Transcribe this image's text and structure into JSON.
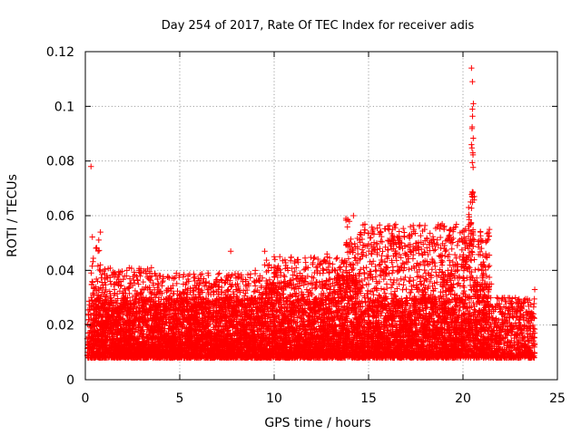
{
  "chart_data": {
    "type": "scatter",
    "title": "Day 254 of 2017, Rate Of TEC Index for receiver adis",
    "xlabel": "GPS time / hours",
    "ylabel": "ROTI / TECUs",
    "xlim": [
      0,
      25
    ],
    "ylim": [
      0,
      0.12
    ],
    "xticks": [
      0,
      5,
      10,
      15,
      20,
      25
    ],
    "yticks": [
      0,
      0.02,
      0.04,
      0.06,
      0.08,
      0.1,
      0.12
    ],
    "xtick_labels": [
      "0",
      "5",
      "10",
      "15",
      "20",
      "25"
    ],
    "ytick_labels": [
      "0",
      "0.02",
      "0.04",
      "0.06",
      "0.08",
      "0.1",
      "0.12"
    ],
    "grid": true,
    "marker": "plus",
    "color": "#ff0000",
    "series": [
      {
        "name": "ROTI",
        "x": [
          0.1,
          0.2,
          0.3,
          0.4,
          0.5,
          0.6,
          0.7,
          0.8,
          0.9,
          1.0,
          1.2,
          1.5,
          1.8,
          2.0,
          2.2,
          2.5,
          2.8,
          3.0,
          3.2,
          3.5,
          3.8,
          4.0,
          4.2,
          4.5,
          4.8,
          5.0,
          5.2,
          5.5,
          5.8,
          6.0,
          6.2,
          6.5,
          6.8,
          7.0,
          7.2,
          7.5,
          7.8,
          8.0,
          8.2,
          8.5,
          8.8,
          9.0,
          9.2,
          9.5,
          9.8,
          10.0,
          10.2,
          10.5,
          10.8,
          11.0,
          11.2,
          11.5,
          11.8,
          12.0,
          12.2,
          12.5,
          12.8,
          13.0,
          13.2,
          13.5,
          13.8,
          14.0,
          14.2,
          14.5,
          14.8,
          15.0,
          15.2,
          15.5,
          15.8,
          16.0,
          16.2,
          16.5,
          16.8,
          17.0,
          17.2,
          17.5,
          17.8,
          18.0,
          18.2,
          18.5,
          18.8,
          19.0,
          19.2,
          19.5,
          19.8,
          20.0,
          20.2,
          20.4,
          20.45,
          20.5,
          20.55,
          20.6,
          20.8,
          21.0,
          21.2,
          21.5,
          21.8,
          22.0,
          22.2,
          22.5,
          22.8,
          23.0,
          23.2,
          23.5,
          23.8,
          0.3,
          0.8,
          3.5,
          6.5,
          9.5,
          10.3,
          13.8,
          14.2,
          18.9,
          20.3,
          20.45,
          20.5,
          20.52,
          21.4,
          19.0,
          16.3,
          12.8,
          7.7,
          2.2
        ],
        "y": [
          0.015,
          0.022,
          0.018,
          0.028,
          0.02,
          0.025,
          0.03,
          0.042,
          0.032,
          0.02,
          0.018,
          0.014,
          0.022,
          0.016,
          0.025,
          0.012,
          0.019,
          0.026,
          0.021,
          0.03,
          0.018,
          0.024,
          0.02,
          0.015,
          0.022,
          0.012,
          0.03,
          0.018,
          0.015,
          0.02,
          0.032,
          0.025,
          0.035,
          0.022,
          0.03,
          0.038,
          0.025,
          0.033,
          0.028,
          0.036,
          0.03,
          0.04,
          0.032,
          0.042,
          0.035,
          0.045,
          0.04,
          0.03,
          0.035,
          0.028,
          0.038,
          0.025,
          0.032,
          0.02,
          0.028,
          0.022,
          0.03,
          0.025,
          0.032,
          0.035,
          0.04,
          0.05,
          0.042,
          0.038,
          0.03,
          0.035,
          0.028,
          0.025,
          0.03,
          0.022,
          0.028,
          0.02,
          0.025,
          0.03,
          0.022,
          0.028,
          0.035,
          0.032,
          0.03,
          0.028,
          0.045,
          0.055,
          0.04,
          0.035,
          0.03,
          0.045,
          0.05,
          0.065,
          0.086,
          0.109,
          0.101,
          0.067,
          0.035,
          0.04,
          0.045,
          0.035,
          0.03,
          0.025,
          0.03,
          0.028,
          0.025,
          0.022,
          0.028,
          0.025,
          0.033,
          0.078,
          0.054,
          0.041,
          0.039,
          0.047,
          0.045,
          0.059,
          0.06,
          0.057,
          0.063,
          0.114,
          0.099,
          0.083,
          0.055,
          0.048,
          0.04,
          0.046,
          0.047,
          0.04
        ],
        "band_low": 0.008,
        "band_high": 0.03
      }
    ]
  }
}
